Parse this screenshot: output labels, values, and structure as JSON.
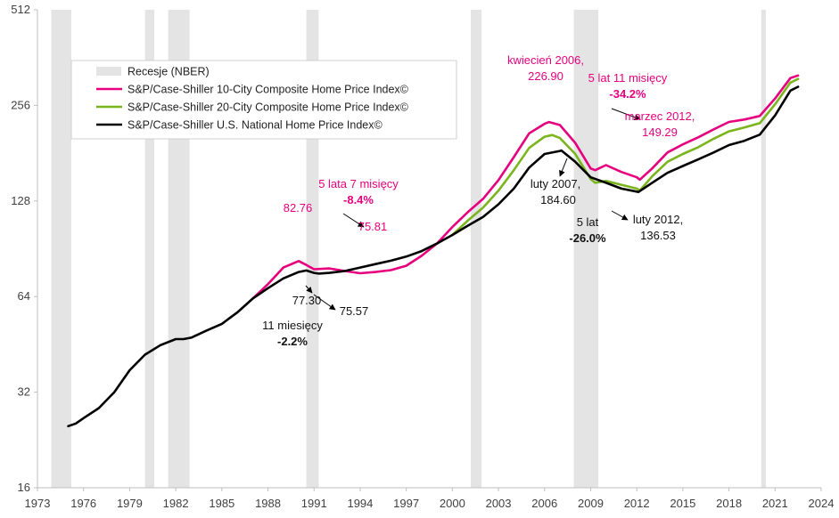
{
  "chart_data": {
    "type": "line",
    "y_scale": "log2",
    "ylim": [
      16,
      512
    ],
    "y_ticks": [
      "16",
      "32",
      "64",
      "128",
      "256",
      "512"
    ],
    "x_range": [
      1973,
      2024
    ],
    "x_ticks": [
      "1973",
      "1976",
      "1979",
      "1982",
      "1985",
      "1988",
      "1991",
      "1994",
      "1997",
      "2000",
      "2003",
      "2006",
      "2009",
      "2012",
      "2015",
      "2018",
      "2021",
      "2024"
    ],
    "grid": false,
    "legend_position": "top-left",
    "recessions": [
      [
        1973.9,
        1975.2
      ],
      [
        1980.0,
        1980.6
      ],
      [
        1981.5,
        1982.9
      ],
      [
        1990.5,
        1991.3
      ],
      [
        2001.2,
        2001.9
      ],
      [
        2007.9,
        2009.5
      ],
      [
        2020.1,
        2020.4
      ]
    ],
    "legend": {
      "recession": "Recesje (NBER)",
      "s10": "S&P/Case-Shiller 10-City Composite Home Price Index©",
      "s20": "S&P/Case-Shiller 20-City Composite Home Price Index©",
      "nat": "S&P/Case-Shiller U.S. National Home Price Index©"
    },
    "colors": {
      "s10": "#e6007e",
      "s20": "#7ab51d",
      "nat": "#000000",
      "recession": "#e4e4e4"
    },
    "series": [
      {
        "name": "S&P/Case-Shiller 10-City Composite Home Price Index©",
        "key": "s10",
        "x": [
          1987.0,
          1988.0,
          1989.0,
          1990.0,
          1990.5,
          1991.0,
          1992.0,
          1993.0,
          1994.0,
          1995.0,
          1996.0,
          1997.0,
          1998.0,
          1999.0,
          2000.0,
          2001.0,
          2002.0,
          2003.0,
          2004.0,
          2005.0,
          2006.0,
          2006.3,
          2007.0,
          2008.0,
          2009.0,
          2009.3,
          2010.0,
          2011.0,
          2012.0,
          2012.2,
          2013.0,
          2014.0,
          2015.0,
          2016.0,
          2017.0,
          2018.0,
          2019.0,
          2020.0,
          2021.0,
          2022.0,
          2022.5
        ],
        "values": [
          63,
          70,
          79,
          82.8,
          80.5,
          78,
          78.5,
          77,
          75.8,
          76.5,
          77.5,
          80,
          86,
          94,
          106,
          118,
          130,
          149,
          176,
          209,
          224,
          226.9,
          222,
          195,
          162,
          160,
          166,
          158,
          152,
          149.3,
          162,
          182,
          193,
          203,
          215,
          227,
          231,
          237,
          269,
          312,
          318
        ]
      },
      {
        "name": "S&P/Case-Shiller 20-City Composite Home Price Index©",
        "key": "s20",
        "x": [
          2000.0,
          2001.0,
          2002.0,
          2003.0,
          2004.0,
          2005.0,
          2006.0,
          2006.5,
          2007.0,
          2008.0,
          2009.0,
          2009.3,
          2010.0,
          2011.0,
          2012.0,
          2012.2,
          2013.0,
          2014.0,
          2015.0,
          2016.0,
          2017.0,
          2018.0,
          2019.0,
          2020.0,
          2021.0,
          2022.0,
          2022.5
        ],
        "values": [
          100,
          111,
          122,
          138,
          160,
          188,
          204,
          206.5,
          202,
          180,
          150,
          146,
          148,
          144,
          140,
          138,
          153,
          170,
          180,
          189,
          201,
          212,
          218,
          225,
          258,
          302,
          310
        ]
      },
      {
        "name": "S&P/Case-Shiller U.S. National Home Price Index©",
        "key": "nat",
        "x": [
          1975.0,
          1975.5,
          1976.0,
          1977.0,
          1978.0,
          1979.0,
          1980.0,
          1981.0,
          1982.0,
          1982.5,
          1983.0,
          1984.0,
          1985.0,
          1986.0,
          1987.0,
          1988.0,
          1989.0,
          1990.0,
          1990.5,
          1991.0,
          1991.3,
          1992.0,
          1993.0,
          1994.0,
          1995.0,
          1996.0,
          1997.0,
          1998.0,
          1999.0,
          2000.0,
          2001.0,
          2002.0,
          2003.0,
          2004.0,
          2005.0,
          2006.0,
          2007.0,
          2007.1,
          2008.0,
          2009.0,
          2010.0,
          2011.0,
          2012.0,
          2012.1,
          2013.0,
          2014.0,
          2015.0,
          2016.0,
          2017.0,
          2018.0,
          2019.0,
          2020.0,
          2021.0,
          2022.0,
          2022.5
        ],
        "values": [
          25,
          25.5,
          26.5,
          28.5,
          32,
          37.5,
          42,
          45,
          47,
          47,
          47.5,
          50,
          52.5,
          57,
          63,
          68,
          73,
          76.5,
          77.3,
          76,
          75.6,
          76,
          77,
          79,
          81,
          83,
          85.5,
          89,
          94,
          100,
          107,
          114,
          125,
          140,
          163,
          180,
          184,
          184.6,
          170,
          152,
          146,
          140,
          137,
          136.5,
          146,
          157,
          165,
          173,
          182,
          192,
          198,
          207,
          238,
          285,
          293
        ]
      }
    ],
    "annotations": [
      {
        "text": "kwiecień 2006,",
        "color": "pink"
      },
      {
        "text": "226.90",
        "color": "pink"
      },
      {
        "text": "5 lat 11 misięcy",
        "color": "pink"
      },
      {
        "text": "-34.2%",
        "color": "pink",
        "bold": true
      },
      {
        "text": "marzec 2012,",
        "color": "pink"
      },
      {
        "text": "149.29",
        "color": "pink"
      },
      {
        "text": "5 lata 7 misięcy",
        "color": "pink"
      },
      {
        "text": "-8.4%",
        "color": "pink",
        "bold": true
      },
      {
        "text": "82.76",
        "color": "pink"
      },
      {
        "text": "75.81",
        "color": "pink"
      },
      {
        "text": "luty 2007,",
        "color": "black"
      },
      {
        "text": "184.60",
        "color": "black"
      },
      {
        "text": "5 lat",
        "color": "black"
      },
      {
        "text": "-26.0%",
        "color": "black",
        "bold": true
      },
      {
        "text": "luty 2012,",
        "color": "black"
      },
      {
        "text": "136.53",
        "color": "black"
      },
      {
        "text": "77.30",
        "color": "black"
      },
      {
        "text": "75.57",
        "color": "black"
      },
      {
        "text": "11 miesięcy",
        "color": "black"
      },
      {
        "text": "-2.2%",
        "color": "black",
        "bold": true
      }
    ]
  }
}
